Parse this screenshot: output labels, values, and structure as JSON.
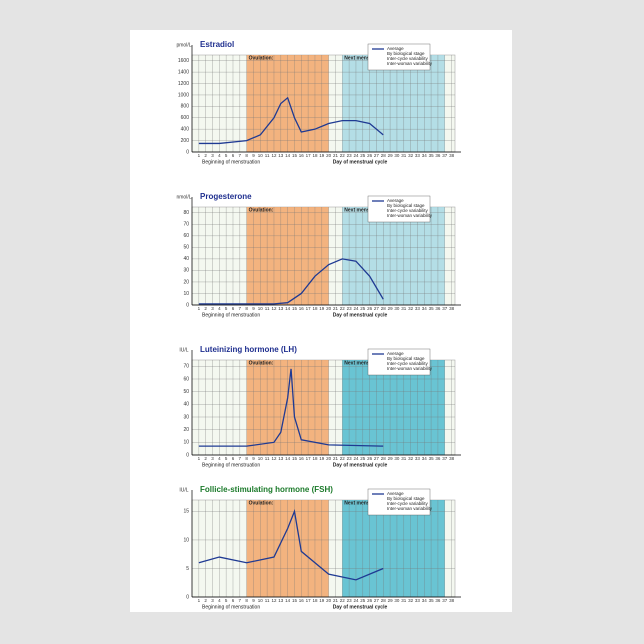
{
  "chart_data": [
    {
      "type": "line",
      "title": "Estradiol",
      "y_label": "pmol/L",
      "x_label": "Day of menstrual cycle",
      "note": "Beginning of menstruation",
      "xlim": [
        0,
        38.5
      ],
      "xticks": [
        1,
        2,
        3,
        4,
        5,
        6,
        7,
        8,
        9,
        10,
        11,
        12,
        13,
        14,
        15,
        16,
        17,
        18,
        19,
        20,
        21,
        22,
        23,
        24,
        25,
        26,
        27,
        28,
        29,
        30,
        31,
        32,
        33,
        34,
        35,
        36,
        37,
        38
      ],
      "ylim": [
        0,
        1700
      ],
      "yticks": [
        0,
        200,
        400,
        600,
        800,
        1000,
        1200,
        1400,
        1600
      ],
      "grid": true,
      "x": [
        1,
        4,
        8,
        10,
        12,
        13,
        14,
        15,
        16,
        18,
        20,
        22,
        24,
        26,
        28
      ],
      "series": [
        {
          "name": "Average",
          "color": "#1f3a93",
          "values": [
            150,
            150,
            200,
            300,
            600,
            850,
            950,
            600,
            350,
            400,
            500,
            550,
            550,
            500,
            300
          ]
        }
      ],
      "regions": [
        {
          "name": "Ovulation:",
          "color": "#f39c5a",
          "x": [
            8,
            20
          ]
        },
        {
          "name": "Next menstruation",
          "color": "#9fd6e3",
          "x": [
            22,
            37
          ]
        }
      ],
      "legend_extra": [
        "By biological stage",
        "Inter-cycle variability",
        "Inter-woman variability"
      ]
    },
    {
      "type": "line",
      "title": "Progesterone",
      "y_label": "nmol/L",
      "x_label": "Day of menstrual cycle",
      "note": "Beginning of menstruation",
      "xlim": [
        0,
        38.5
      ],
      "xticks": [
        1,
        2,
        3,
        4,
        5,
        6,
        7,
        8,
        9,
        10,
        11,
        12,
        13,
        14,
        15,
        16,
        17,
        18,
        19,
        20,
        21,
        22,
        23,
        24,
        25,
        26,
        27,
        28,
        29,
        30,
        31,
        32,
        33,
        34,
        35,
        36,
        37,
        38
      ],
      "ylim": [
        0,
        85
      ],
      "yticks": [
        0,
        10,
        20,
        30,
        40,
        50,
        60,
        70,
        80
      ],
      "grid": true,
      "x": [
        1,
        12,
        14,
        16,
        18,
        20,
        22,
        24,
        26,
        28
      ],
      "series": [
        {
          "name": "Average",
          "color": "#1f3a93",
          "values": [
            1,
            1,
            2,
            10,
            25,
            35,
            40,
            38,
            25,
            5
          ]
        }
      ],
      "regions": [
        {
          "name": "Ovulation:",
          "color": "#f39c5a",
          "x": [
            8,
            20
          ]
        },
        {
          "name": "Next menstruation",
          "color": "#9fd6e3",
          "x": [
            22,
            37
          ]
        }
      ],
      "legend_extra": [
        "By biological stage",
        "Inter-cycle variability",
        "Inter-woman variability"
      ]
    },
    {
      "type": "line",
      "title": "Luteinizing hormone (LH)",
      "y_label": "IU/L",
      "x_label": "Day of menstrual cycle",
      "note": "Beginning of menstruation",
      "xlim": [
        0,
        38.5
      ],
      "xticks": [
        1,
        2,
        3,
        4,
        5,
        6,
        7,
        8,
        9,
        10,
        11,
        12,
        13,
        14,
        15,
        16,
        17,
        18,
        19,
        20,
        21,
        22,
        23,
        24,
        25,
        26,
        27,
        28,
        29,
        30,
        31,
        32,
        33,
        34,
        35,
        36,
        37,
        38
      ],
      "ylim": [
        0,
        75
      ],
      "yticks": [
        0,
        10,
        20,
        30,
        40,
        50,
        60,
        70
      ],
      "grid": true,
      "x": [
        1,
        8,
        12,
        13,
        14,
        14.5,
        15,
        16,
        20,
        28
      ],
      "series": [
        {
          "name": "Average",
          "color": "#1f3a93",
          "values": [
            7,
            7,
            10,
            18,
            45,
            68,
            30,
            12,
            8,
            7
          ]
        }
      ],
      "regions": [
        {
          "name": "Ovulation:",
          "color": "#f39c5a",
          "x": [
            8,
            20
          ]
        },
        {
          "name": "Next menstruation",
          "color": "#3bb3c9",
          "x": [
            22,
            37
          ]
        }
      ],
      "legend_extra": [
        "By biological stage",
        "Inter-cycle variability",
        "Inter-woman variability"
      ]
    },
    {
      "type": "line",
      "title": "Follicle-stimulating hormone (FSH)",
      "y_label": "IU/L",
      "x_label": "Day of menstrual cycle",
      "note": "Beginning of menstruation",
      "xlim": [
        0,
        38.5
      ],
      "xticks": [
        1,
        2,
        3,
        4,
        5,
        6,
        7,
        8,
        9,
        10,
        11,
        12,
        13,
        14,
        15,
        16,
        17,
        18,
        19,
        20,
        21,
        22,
        23,
        24,
        25,
        26,
        27,
        28,
        29,
        30,
        31,
        32,
        33,
        34,
        35,
        36,
        37,
        38
      ],
      "ylim": [
        0,
        17
      ],
      "yticks": [
        0,
        5,
        10,
        15
      ],
      "grid": true,
      "x": [
        1,
        4,
        8,
        12,
        14,
        15,
        16,
        20,
        24,
        28
      ],
      "series": [
        {
          "name": "Average",
          "color": "#1f3a93",
          "values": [
            6,
            7,
            6,
            7,
            12,
            15,
            8,
            4,
            3,
            5
          ]
        }
      ],
      "regions": [
        {
          "name": "Ovulation:",
          "color": "#f39c5a",
          "x": [
            8,
            20
          ]
        },
        {
          "name": "Next menstruation",
          "color": "#3bb3c9",
          "x": [
            22,
            37
          ]
        }
      ],
      "legend_extra": [
        "By biological stage",
        "Inter-cycle variability",
        "Inter-woman variability"
      ]
    }
  ]
}
